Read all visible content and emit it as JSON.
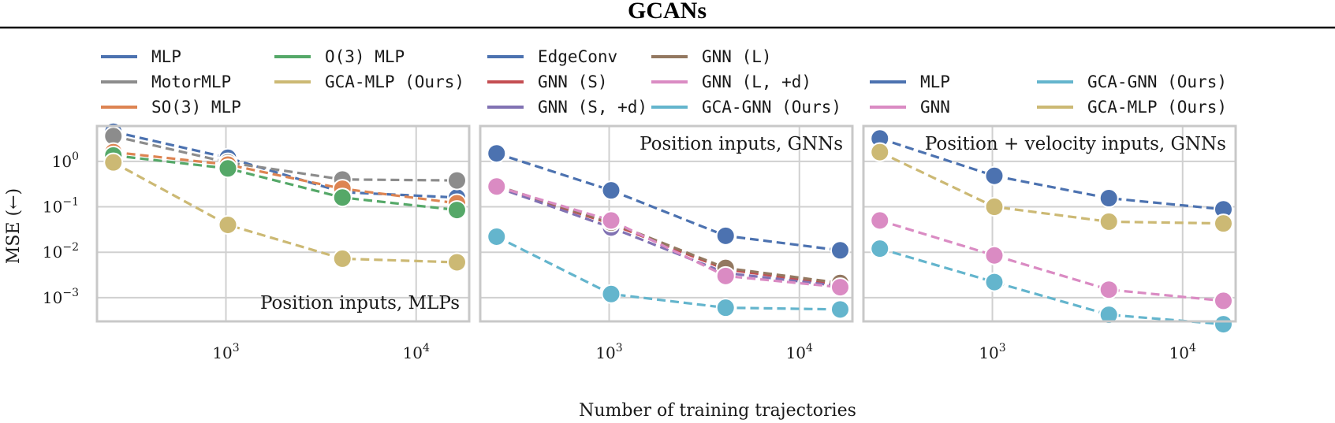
{
  "title": "GCANs",
  "xlabel": "Number of training trajectories",
  "ylabel": "MSE (←)",
  "colors": {
    "blue": "#4c72b0",
    "gray": "#8c8c8c",
    "orange": "#dd8452",
    "green": "#55a868",
    "gold": "#ccb974",
    "red": "#c44e52",
    "purple": "#8172b3",
    "brown": "#937860",
    "pink": "#da8bc3",
    "cyan": "#64b5cd"
  },
  "chart_data": [
    {
      "type": "line",
      "annotation": "Position inputs, MLPs",
      "xscale": "log",
      "yscale": "log",
      "xlim": [
        210,
        19000
      ],
      "ylim": [
        0.0003,
        6
      ],
      "x_ticks": [
        {
          "value": 1000,
          "base": "10",
          "exp": "3"
        },
        {
          "value": 10000,
          "base": "10",
          "exp": "4"
        }
      ],
      "y_ticks": [
        {
          "value": 1,
          "base": "10",
          "exp": "0"
        },
        {
          "value": 0.1,
          "base": "10",
          "exp": "−1"
        },
        {
          "value": 0.01,
          "base": "10",
          "exp": "−2"
        },
        {
          "value": 0.001,
          "base": "10",
          "exp": "−3"
        }
      ],
      "legend_columns": 2,
      "x": [
        256,
        1024,
        4096,
        16384
      ],
      "series": [
        {
          "name": "MLP",
          "color": "#4c72b0",
          "values": [
            4.5,
            1.2,
            0.21,
            0.16
          ]
        },
        {
          "name": "MotorMLP",
          "color": "#8c8c8c",
          "values": [
            3.6,
            0.95,
            0.4,
            0.38
          ]
        },
        {
          "name": "SO(3) MLP",
          "color": "#dd8452",
          "values": [
            1.6,
            0.85,
            0.25,
            0.12
          ]
        },
        {
          "name": "O(3) MLP",
          "color": "#55a868",
          "values": [
            1.35,
            0.7,
            0.16,
            0.085
          ]
        },
        {
          "name": "GCA-MLP (Ours)",
          "color": "#ccb974",
          "values": [
            0.95,
            0.04,
            0.0072,
            0.006
          ]
        }
      ]
    },
    {
      "type": "line",
      "annotation": "Position inputs, GNNs",
      "xscale": "log",
      "yscale": "log",
      "xlim": [
        210,
        19000
      ],
      "ylim": [
        0.0003,
        6
      ],
      "x_ticks": [
        {
          "value": 1000,
          "base": "10",
          "exp": "3"
        },
        {
          "value": 10000,
          "base": "10",
          "exp": "4"
        }
      ],
      "legend_columns": 2,
      "x": [
        256,
        1024,
        4096,
        16384
      ],
      "series": [
        {
          "name": "EdgeConv",
          "color": "#4c72b0",
          "values": [
            1.5,
            0.23,
            0.023,
            0.011
          ]
        },
        {
          "name": "GNN (S)",
          "color": "#c44e52",
          "values": [
            0.28,
            0.042,
            0.0042,
            0.0019
          ]
        },
        {
          "name": "GNN (S, +d)",
          "color": "#8172b3",
          "values": [
            0.27,
            0.035,
            0.0035,
            0.0018
          ]
        },
        {
          "name": "GNN (L)",
          "color": "#937860",
          "values": [
            0.29,
            0.045,
            0.0045,
            0.0021
          ]
        },
        {
          "name": "GNN (L, +d)",
          "color": "#da8bc3",
          "values": [
            0.28,
            0.05,
            0.003,
            0.0017
          ]
        },
        {
          "name": "GCA-GNN (Ours)",
          "color": "#64b5cd",
          "values": [
            0.022,
            0.0012,
            0.0006,
            0.00055
          ]
        }
      ]
    },
    {
      "type": "line",
      "annotation": "Position + velocity inputs, GNNs",
      "xscale": "log",
      "yscale": "log",
      "xlim": [
        210,
        19000
      ],
      "ylim": [
        0.0003,
        6
      ],
      "x_ticks": [
        {
          "value": 1000,
          "base": "10",
          "exp": "3"
        },
        {
          "value": 10000,
          "base": "10",
          "exp": "4"
        }
      ],
      "legend_columns": 2,
      "x": [
        256,
        1024,
        4096,
        16384
      ],
      "series": [
        {
          "name": "MLP",
          "color": "#4c72b0",
          "values": [
            3.2,
            0.48,
            0.155,
            0.088
          ]
        },
        {
          "name": "GNN",
          "color": "#da8bc3",
          "values": [
            0.05,
            0.0085,
            0.0015,
            0.00085
          ]
        },
        {
          "name": "GCA-GNN (Ours)",
          "color": "#64b5cd",
          "values": [
            0.012,
            0.0022,
            0.00042,
            0.00026
          ]
        },
        {
          "name": "GCA-MLP (Ours)",
          "color": "#ccb974",
          "values": [
            1.6,
            0.1,
            0.047,
            0.043
          ]
        }
      ]
    }
  ]
}
